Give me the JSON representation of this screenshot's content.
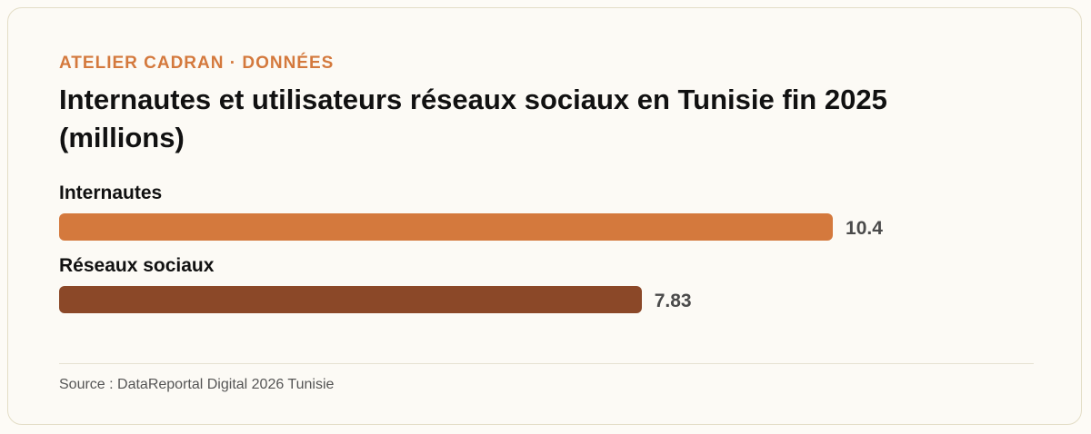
{
  "header": {
    "kicker": "ATELIER CADRAN · DONNÉES"
  },
  "chart_data": {
    "type": "bar",
    "orientation": "horizontal",
    "title": "Internautes et utilisateurs réseaux sociaux en Tunisie fin 2025 (millions)",
    "categories": [
      "Internautes",
      "Réseaux sociaux"
    ],
    "values": [
      10.4,
      7.83
    ],
    "value_labels": [
      "10.4",
      "7.83"
    ],
    "colors": [
      "#d4793d",
      "#8b4828"
    ],
    "xlim": [
      0,
      13.1
    ],
    "grid": false,
    "legend": "none"
  },
  "footer": {
    "source": "Source : DataReportal Digital 2026 Tunisie"
  }
}
